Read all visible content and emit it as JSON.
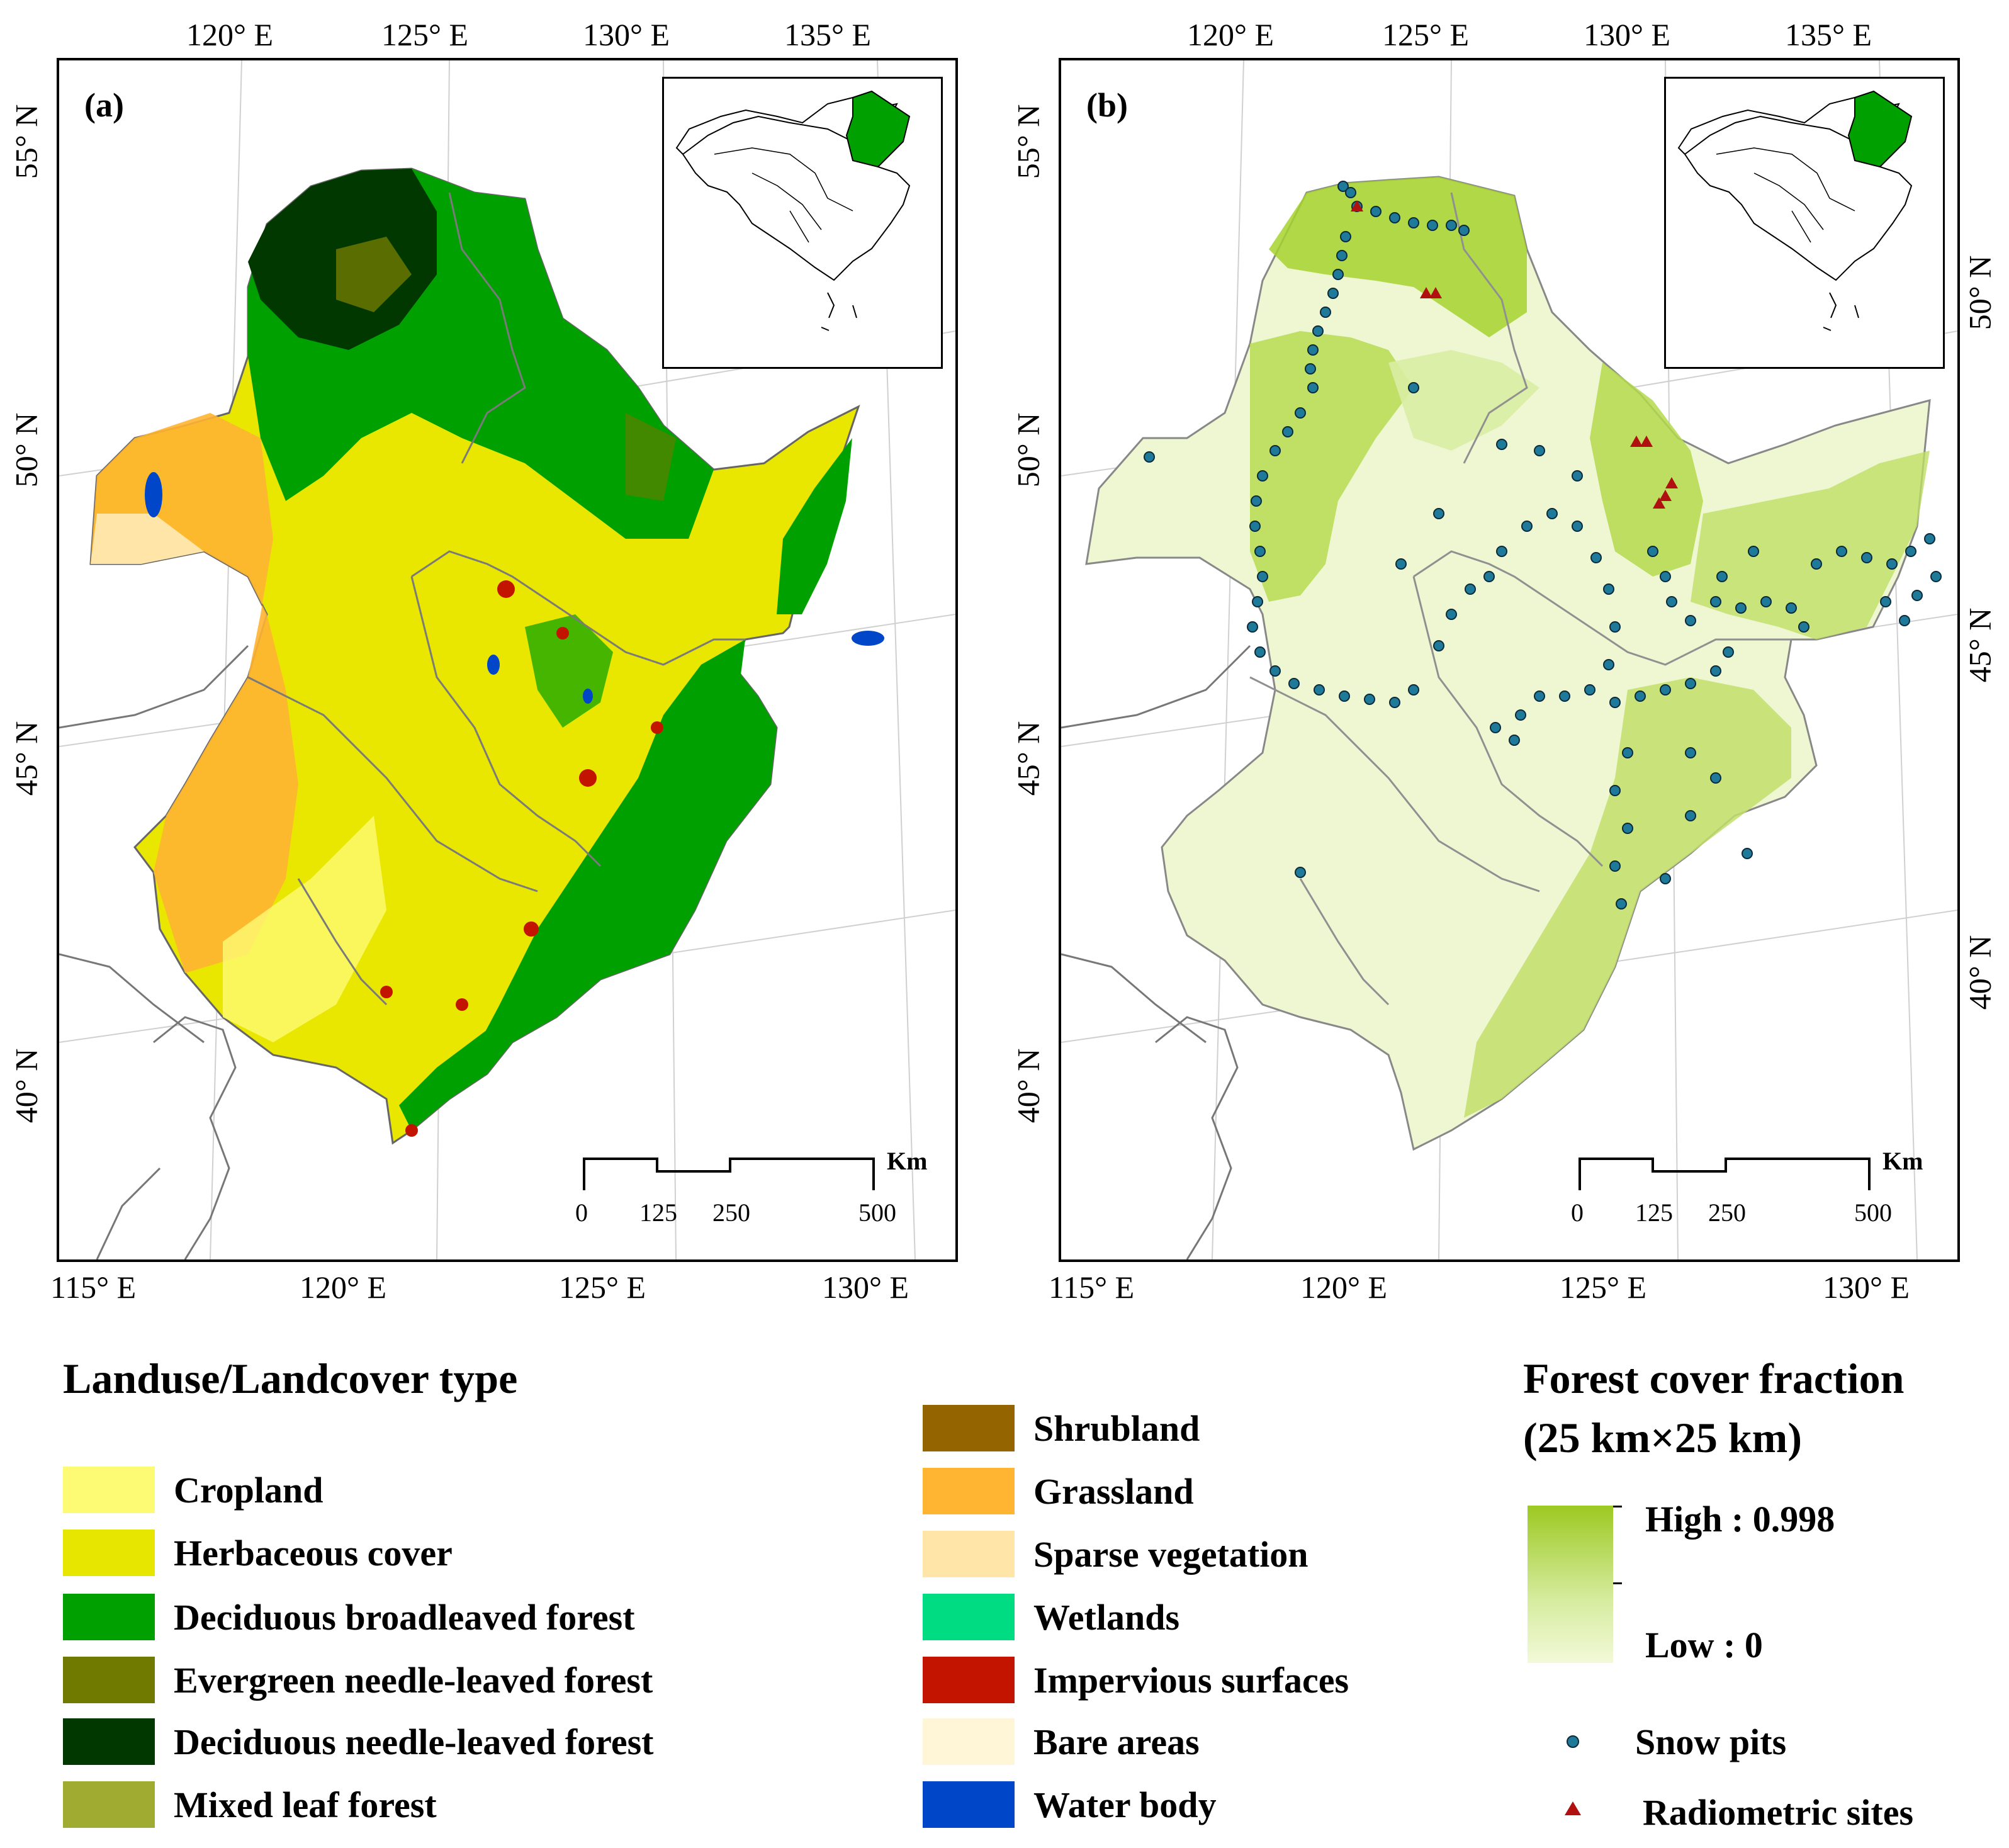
{
  "panels": [
    {
      "label": "(a)",
      "top_ticks": [
        "120° E",
        "125° E",
        "130° E",
        "135° E"
      ],
      "bottom_ticks": [
        "115° E",
        "120° E",
        "125° E",
        "130° E"
      ],
      "left_ticks": [
        "55° N",
        "50° N",
        "45° N",
        "40° N"
      ],
      "right_ticks": []
    },
    {
      "label": "(b)",
      "top_ticks": [
        "120° E",
        "125° E",
        "130° E",
        "135° E"
      ],
      "bottom_ticks": [
        "115° E",
        "120° E",
        "125° E",
        "130° E"
      ],
      "left_ticks": [
        "55° N",
        "50° N",
        "45° N",
        "40° N"
      ],
      "right_ticks": [
        "50° N",
        "45° N",
        "40° N"
      ]
    }
  ],
  "scale_bar": {
    "unit": "Km",
    "labels": [
      "0",
      "125",
      "250",
      "500"
    ]
  },
  "landcover_legend": {
    "title": "Landuse/Landcover  type",
    "items": [
      {
        "label": "Cropland",
        "color": "#fdfb73"
      },
      {
        "label": "Herbaceous cover",
        "color": "#e6e600"
      },
      {
        "label": "Deciduous broadleaved forest",
        "color": "#00a000"
      },
      {
        "label": "Evergreen needle-leaved forest",
        "color": "#707a00"
      },
      {
        "label": "Deciduous needle-leaved forest",
        "color": "#003800"
      },
      {
        "label": "Mixed leaf forest",
        "color": "#a0ac31"
      },
      {
        "label": "Shrubland",
        "color": "#946400"
      },
      {
        "label": "Grassland",
        "color": "#ffb432"
      },
      {
        "label": "Sparse vegetation",
        "color": "#ffe6a8"
      },
      {
        "label": "Wetlands",
        "color": "#00dc82"
      },
      {
        "label": "Impervious surfaces",
        "color": "#c31400"
      },
      {
        "label": "Bare areas",
        "color": "#fff5d7"
      },
      {
        "label": "Water body",
        "color": "#0046c8"
      }
    ]
  },
  "forest_legend": {
    "title_line1": "Forest cover fraction",
    "title_line2": "(25 km×25 km)",
    "high_label": "High : 0.998",
    "low_label": "Low : 0",
    "snow_pits_label": "Snow pits",
    "radiometric_label": "Radiometric sites",
    "high_color": "#9cc922",
    "low_color": "#f2f9d8",
    "snow_pit_color": "#1f7a9a",
    "radiometric_color": "#b01010"
  }
}
